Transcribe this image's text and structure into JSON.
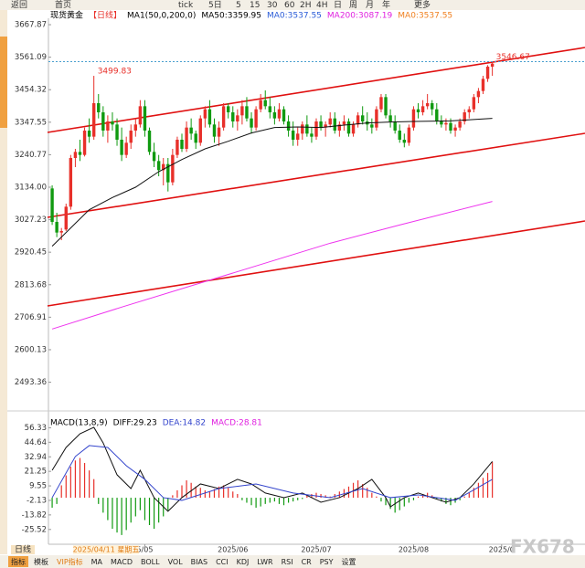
{
  "toolbar": [
    "返回",
    "首页",
    "tick",
    "5日",
    "5",
    "15",
    "30",
    "60",
    "2H",
    "4H",
    "日",
    "周",
    "月",
    "年",
    "更多"
  ],
  "chart_data": [
    {
      "type": "candlestick",
      "title": "现货黄金",
      "period": "【日线】",
      "legend": [
        {
          "text": "MA1(50,0,200,0)",
          "color": "#000000"
        },
        {
          "text": "MA50:3359.95",
          "color": "#000000"
        },
        {
          "text": "MA0:3537.55",
          "color": "#2a5cd8"
        },
        {
          "text": "MA200:3087.19",
          "color": "#e020e0"
        },
        {
          "text": "MA0:3537.55",
          "color": "#f08020"
        }
      ],
      "up_color": "#e8302a",
      "down_color": "#109a10",
      "xlim": [
        -1,
        115
      ],
      "ylim": [
        2414,
        3689
      ],
      "yticks": [
        3667.87,
        3561.09,
        3454.32,
        3347.55,
        3240.77,
        {
          "value": 3134,
          "label": "3134.00"
        },
        3027.23,
        2920.45,
        2813.68,
        2706.91,
        2600.13,
        2493.36
      ],
      "ohlc": [
        [
          3130,
          3140,
          3010,
          3020
        ],
        [
          3020,
          3050,
          2970,
          2985
        ],
        [
          2985,
          3000,
          2960,
          2990
        ],
        [
          2995,
          3080,
          2990,
          3070
        ],
        [
          3070,
          3240,
          3060,
          3230
        ],
        [
          3230,
          3260,
          3200,
          3250
        ],
        [
          3250,
          3290,
          3220,
          3240
        ],
        [
          3240,
          3330,
          3235,
          3320
        ],
        [
          3320,
          3360,
          3280,
          3300
        ],
        [
          3300,
          3499.83,
          3290,
          3410
        ],
        [
          3410,
          3440,
          3360,
          3380
        ],
        [
          3380,
          3400,
          3300,
          3320
        ],
        [
          3320,
          3370,
          3280,
          3350
        ],
        [
          3350,
          3380,
          3320,
          3340
        ],
        [
          3340,
          3360,
          3270,
          3290
        ],
        [
          3290,
          3330,
          3220,
          3240
        ],
        [
          3240,
          3300,
          3230,
          3280
        ],
        [
          3280,
          3340,
          3260,
          3320
        ],
        [
          3320,
          3360,
          3300,
          3340
        ],
        [
          3340,
          3420,
          3330,
          3400
        ],
        [
          3400,
          3420,
          3300,
          3320
        ],
        [
          3320,
          3330,
          3240,
          3250
        ],
        [
          3250,
          3280,
          3200,
          3220
        ],
        [
          3220,
          3240,
          3170,
          3190
        ],
        [
          3190,
          3230,
          3140,
          3210
        ],
        [
          3210,
          3230,
          3120,
          3150
        ],
        [
          3150,
          3260,
          3140,
          3240
        ],
        [
          3240,
          3300,
          3230,
          3290
        ],
        [
          3290,
          3310,
          3250,
          3260
        ],
        [
          3260,
          3350,
          3250,
          3330
        ],
        [
          3330,
          3360,
          3290,
          3310
        ],
        [
          3310,
          3320,
          3260,
          3280
        ],
        [
          3280,
          3370,
          3270,
          3360
        ],
        [
          3360,
          3400,
          3330,
          3390
        ],
        [
          3390,
          3420,
          3330,
          3340
        ],
        [
          3340,
          3360,
          3280,
          3300
        ],
        [
          3300,
          3350,
          3270,
          3330
        ],
        [
          3330,
          3410,
          3320,
          3400
        ],
        [
          3400,
          3410,
          3360,
          3380
        ],
        [
          3380,
          3400,
          3330,
          3350
        ],
        [
          3350,
          3390,
          3320,
          3370
        ],
        [
          3370,
          3420,
          3340,
          3400
        ],
        [
          3400,
          3430,
          3350,
          3360
        ],
        [
          3360,
          3380,
          3310,
          3330
        ],
        [
          3330,
          3400,
          3320,
          3390
        ],
        [
          3390,
          3440,
          3380,
          3420
        ],
        [
          3420,
          3452,
          3390,
          3400
        ],
        [
          3400,
          3430,
          3360,
          3380
        ],
        [
          3380,
          3400,
          3340,
          3360
        ],
        [
          3360,
          3410,
          3350,
          3390
        ],
        [
          3390,
          3400,
          3340,
          3350
        ],
        [
          3350,
          3370,
          3300,
          3320
        ],
        [
          3320,
          3350,
          3270,
          3290
        ],
        [
          3290,
          3330,
          3270,
          3310
        ],
        [
          3310,
          3350,
          3290,
          3340
        ],
        [
          3340,
          3370,
          3300,
          3310
        ],
        [
          3310,
          3330,
          3280,
          3300
        ],
        [
          3300,
          3360,
          3290,
          3350
        ],
        [
          3350,
          3370,
          3320,
          3330
        ],
        [
          3330,
          3350,
          3300,
          3340
        ],
        [
          3340,
          3380,
          3330,
          3360
        ],
        [
          3360,
          3380,
          3310,
          3320
        ],
        [
          3320,
          3350,
          3300,
          3340
        ],
        [
          3340,
          3370,
          3320,
          3350
        ],
        [
          3350,
          3360,
          3300,
          3310
        ],
        [
          3310,
          3350,
          3300,
          3340
        ],
        [
          3340,
          3380,
          3330,
          3370
        ],
        [
          3370,
          3400,
          3340,
          3350
        ],
        [
          3350,
          3380,
          3320,
          3340
        ],
        [
          3340,
          3360,
          3310,
          3330
        ],
        [
          3330,
          3400,
          3320,
          3390
        ],
        [
          3390,
          3440,
          3380,
          3430
        ],
        [
          3430,
          3440,
          3360,
          3370
        ],
        [
          3370,
          3390,
          3330,
          3350
        ],
        [
          3350,
          3370,
          3310,
          3320
        ],
        [
          3320,
          3340,
          3280,
          3290
        ],
        [
          3290,
          3310,
          3265,
          3280
        ],
        [
          3280,
          3340,
          3270,
          3330
        ],
        [
          3330,
          3400,
          3320,
          3390
        ],
        [
          3390,
          3410,
          3360,
          3380
        ],
        [
          3380,
          3420,
          3370,
          3400
        ],
        [
          3400,
          3440,
          3390,
          3410
        ],
        [
          3410,
          3420,
          3370,
          3390
        ],
        [
          3390,
          3410,
          3340,
          3350
        ],
        [
          3350,
          3370,
          3330,
          3340
        ],
        [
          3340,
          3360,
          3320,
          3345
        ],
        [
          3345,
          3360,
          3310,
          3320
        ],
        [
          3320,
          3340,
          3300,
          3330
        ],
        [
          3330,
          3360,
          3320,
          3350
        ],
        [
          3350,
          3390,
          3340,
          3380
        ],
        [
          3380,
          3400,
          3360,
          3390
        ],
        [
          3390,
          3440,
          3380,
          3430
        ],
        [
          3430,
          3460,
          3410,
          3450
        ],
        [
          3450,
          3500,
          3440,
          3490
        ],
        [
          3490,
          3535,
          3480,
          3530
        ],
        [
          3530,
          3546.67,
          3500,
          3540
        ]
      ],
      "series": [
        {
          "color": "#111111",
          "x": [
            0,
            4,
            8,
            13,
            18,
            23,
            28,
            33,
            38,
            43,
            48,
            53,
            58,
            63,
            68,
            73,
            78,
            86,
            95
          ],
          "values": [
            2940,
            3000,
            3060,
            3100,
            3134,
            3185,
            3225,
            3260,
            3285,
            3312,
            3330,
            3332,
            3330,
            3338,
            3345,
            3348,
            3350,
            3352,
            3359.95
          ]
        },
        {
          "color": "#ee33ee",
          "x": [
            0,
            15,
            30,
            45,
            60,
            75,
            95
          ],
          "values": [
            2668,
            2740,
            2810,
            2880,
            2950,
            3010,
            3087.19
          ]
        }
      ],
      "trendlines": {
        "color": "#e01010",
        "lines": [
          {
            "x": [
              -1,
              115
            ],
            "values": [
              3314,
              3593
            ]
          },
          {
            "x": [
              -1,
              115
            ],
            "values": [
              3035,
              3311
            ]
          },
          {
            "x": [
              -1,
              115
            ],
            "values": [
              2744,
              3023
            ]
          }
        ]
      },
      "annotations": [
        {
          "index": 9,
          "value": 3499.83,
          "color": "#e8302a",
          "dashed": false
        },
        {
          "index": 95,
          "value": 3546.67,
          "color": "#e8302a",
          "dashed": true
        }
      ]
    },
    {
      "type": "macd",
      "legend": [
        {
          "text": "MACD(13,8,9)",
          "color": "#000000"
        },
        {
          "text": "DIFF:29.23",
          "color": "#000000"
        },
        {
          "text": "DEA:14.82",
          "color": "#3344cc"
        },
        {
          "text": "MACD:28.81",
          "color": "#e020e0"
        }
      ],
      "up_color": "#e8302a",
      "down_color": "#109a10",
      "xlim": [
        -1,
        115
      ],
      "ylim": [
        -36.7,
        64
      ],
      "yticks": [
        56.33,
        44.64,
        32.94,
        21.25,
        9.55,
        -2.13,
        -13.82,
        -25.52
      ],
      "xticks": [
        {
          "value": 20,
          "label": "5/05"
        },
        {
          "value": 39,
          "label": "2025/06"
        },
        {
          "value": 57,
          "label": "2025/07"
        },
        {
          "value": 78,
          "label": "2025/08"
        },
        {
          "value": 97,
          "label": "2025/0"
        }
      ],
      "crosshair_label": "2025/04/11 星期五",
      "period_button": "日线",
      "values": [
        -8,
        -5,
        10,
        18,
        25,
        30,
        32,
        28,
        22,
        15,
        -5,
        -12,
        -18,
        -25,
        -28,
        -30,
        -26,
        -20,
        -15,
        -10,
        -18,
        -22,
        -25,
        -20,
        -15,
        -10,
        2,
        6,
        10,
        14,
        12,
        9,
        8,
        6,
        5,
        7,
        9,
        10,
        8,
        5,
        3,
        -2,
        -4,
        -6,
        -8,
        -7,
        -5,
        -4,
        -3,
        -5,
        -6,
        -4,
        -3,
        -2,
        -1,
        2,
        3,
        4,
        3,
        2,
        1,
        3,
        5,
        7,
        9,
        12,
        14,
        11,
        8,
        4,
        1,
        -3,
        -6,
        -9,
        -12,
        -10,
        -7,
        -4,
        -2,
        1,
        3,
        4,
        2,
        -1,
        -3,
        -5,
        -6,
        -4,
        -2,
        1,
        4,
        8,
        12,
        16,
        20,
        28.81
      ],
      "series": [
        {
          "color": "#111111",
          "x": [
            0,
            3,
            6,
            9,
            11,
            14,
            17,
            19,
            22,
            25,
            28,
            32,
            36,
            40,
            43,
            46,
            50,
            54,
            58,
            62,
            66,
            69,
            72,
            73,
            76,
            79,
            82,
            85,
            88,
            91,
            95
          ],
          "values": [
            22.1,
            40.5,
            51.5,
            56.7,
            44.2,
            18.5,
            7.4,
            22.1,
            0.1,
            -10.9,
            0.1,
            11.1,
            7.4,
            14.8,
            11.1,
            3.8,
            0.1,
            3.8,
            -3.6,
            0.1,
            7.4,
            14.8,
            0.1,
            -7.3,
            0.1,
            3.8,
            0.1,
            -3.6,
            0.1,
            11.1,
            29.23
          ]
        },
        {
          "color": "#3344cc",
          "x": [
            0,
            5,
            8,
            12,
            16,
            20,
            24,
            28,
            36,
            44,
            52,
            60,
            67,
            73,
            79,
            87,
            95
          ],
          "values": [
            0.1,
            33.2,
            42,
            40.5,
            25.8,
            14.8,
            0.1,
            -2.1,
            7.4,
            11.1,
            3.8,
            0.1,
            7.4,
            0.1,
            2.3,
            -2.1,
            14.82
          ]
        }
      ]
    }
  ],
  "footer_tabs": [
    "指标",
    "模板",
    "VIP指标",
    "MA",
    "MACD",
    "BOLL",
    "VOL",
    "BIAS",
    "CCI",
    "KDJ",
    "LWR",
    "RSI",
    "CR",
    "PSY",
    "设置"
  ],
  "watermark": "FX678"
}
